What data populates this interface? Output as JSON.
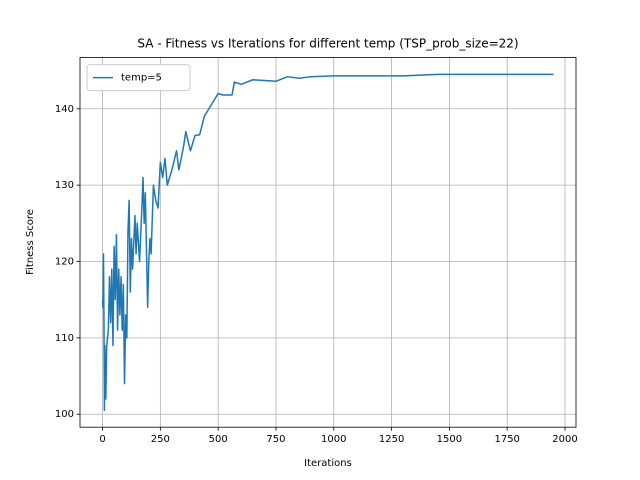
{
  "chart_data": {
    "type": "line",
    "title": "SA - Fitness vs Iterations for different temp (TSP_prob_size=22)",
    "x_label": "Iterations",
    "y_label": "Fitness Score",
    "x": [
      0,
      2,
      4,
      6,
      8,
      10,
      14,
      18,
      25,
      30,
      35,
      40,
      45,
      50,
      55,
      60,
      65,
      70,
      75,
      80,
      85,
      90,
      95,
      100,
      105,
      110,
      115,
      120,
      125,
      130,
      140,
      145,
      150,
      160,
      170,
      175,
      180,
      185,
      195,
      200,
      205,
      210,
      220,
      230,
      240,
      250,
      260,
      270,
      280,
      300,
      320,
      330,
      350,
      360,
      380,
      400,
      420,
      440,
      460,
      480,
      500,
      520,
      540,
      560,
      570,
      600,
      650,
      700,
      750,
      800,
      850,
      900,
      1000,
      1300,
      1450,
      1950
    ],
    "series": [
      {
        "name": "temp=5",
        "color": "#1f77b4",
        "values": [
          115,
          114,
          121,
          113,
          100.5,
          109,
          102,
          109,
          111,
          118,
          112,
          119,
          109,
          122,
          115,
          123.5,
          111,
          119,
          113,
          118,
          111,
          117,
          104,
          113,
          110,
          124,
          128,
          116,
          123,
          119,
          126,
          121,
          125,
          120,
          127,
          131,
          125,
          129,
          114,
          120,
          123,
          121,
          130,
          128,
          127,
          133,
          131,
          133.5,
          130,
          132,
          134.5,
          132,
          135,
          137,
          134.5,
          136.5,
          136.6,
          139,
          140,
          141,
          142,
          141.8,
          141.8,
          141.8,
          143.5,
          143.2,
          143.8,
          143.7,
          143.6,
          144.2,
          144,
          144.2,
          144.3,
          144.3,
          144.5,
          144.5
        ]
      }
    ],
    "xlim": [
      -97.5,
      2047.5
    ],
    "xticks": [
      0,
      250,
      500,
      750,
      1000,
      1250,
      1500,
      1750,
      2000
    ],
    "ylim": [
      98.3,
      146.7
    ],
    "yticks": [
      100,
      110,
      120,
      130,
      140
    ],
    "grid": true,
    "legend": "upper-left"
  }
}
